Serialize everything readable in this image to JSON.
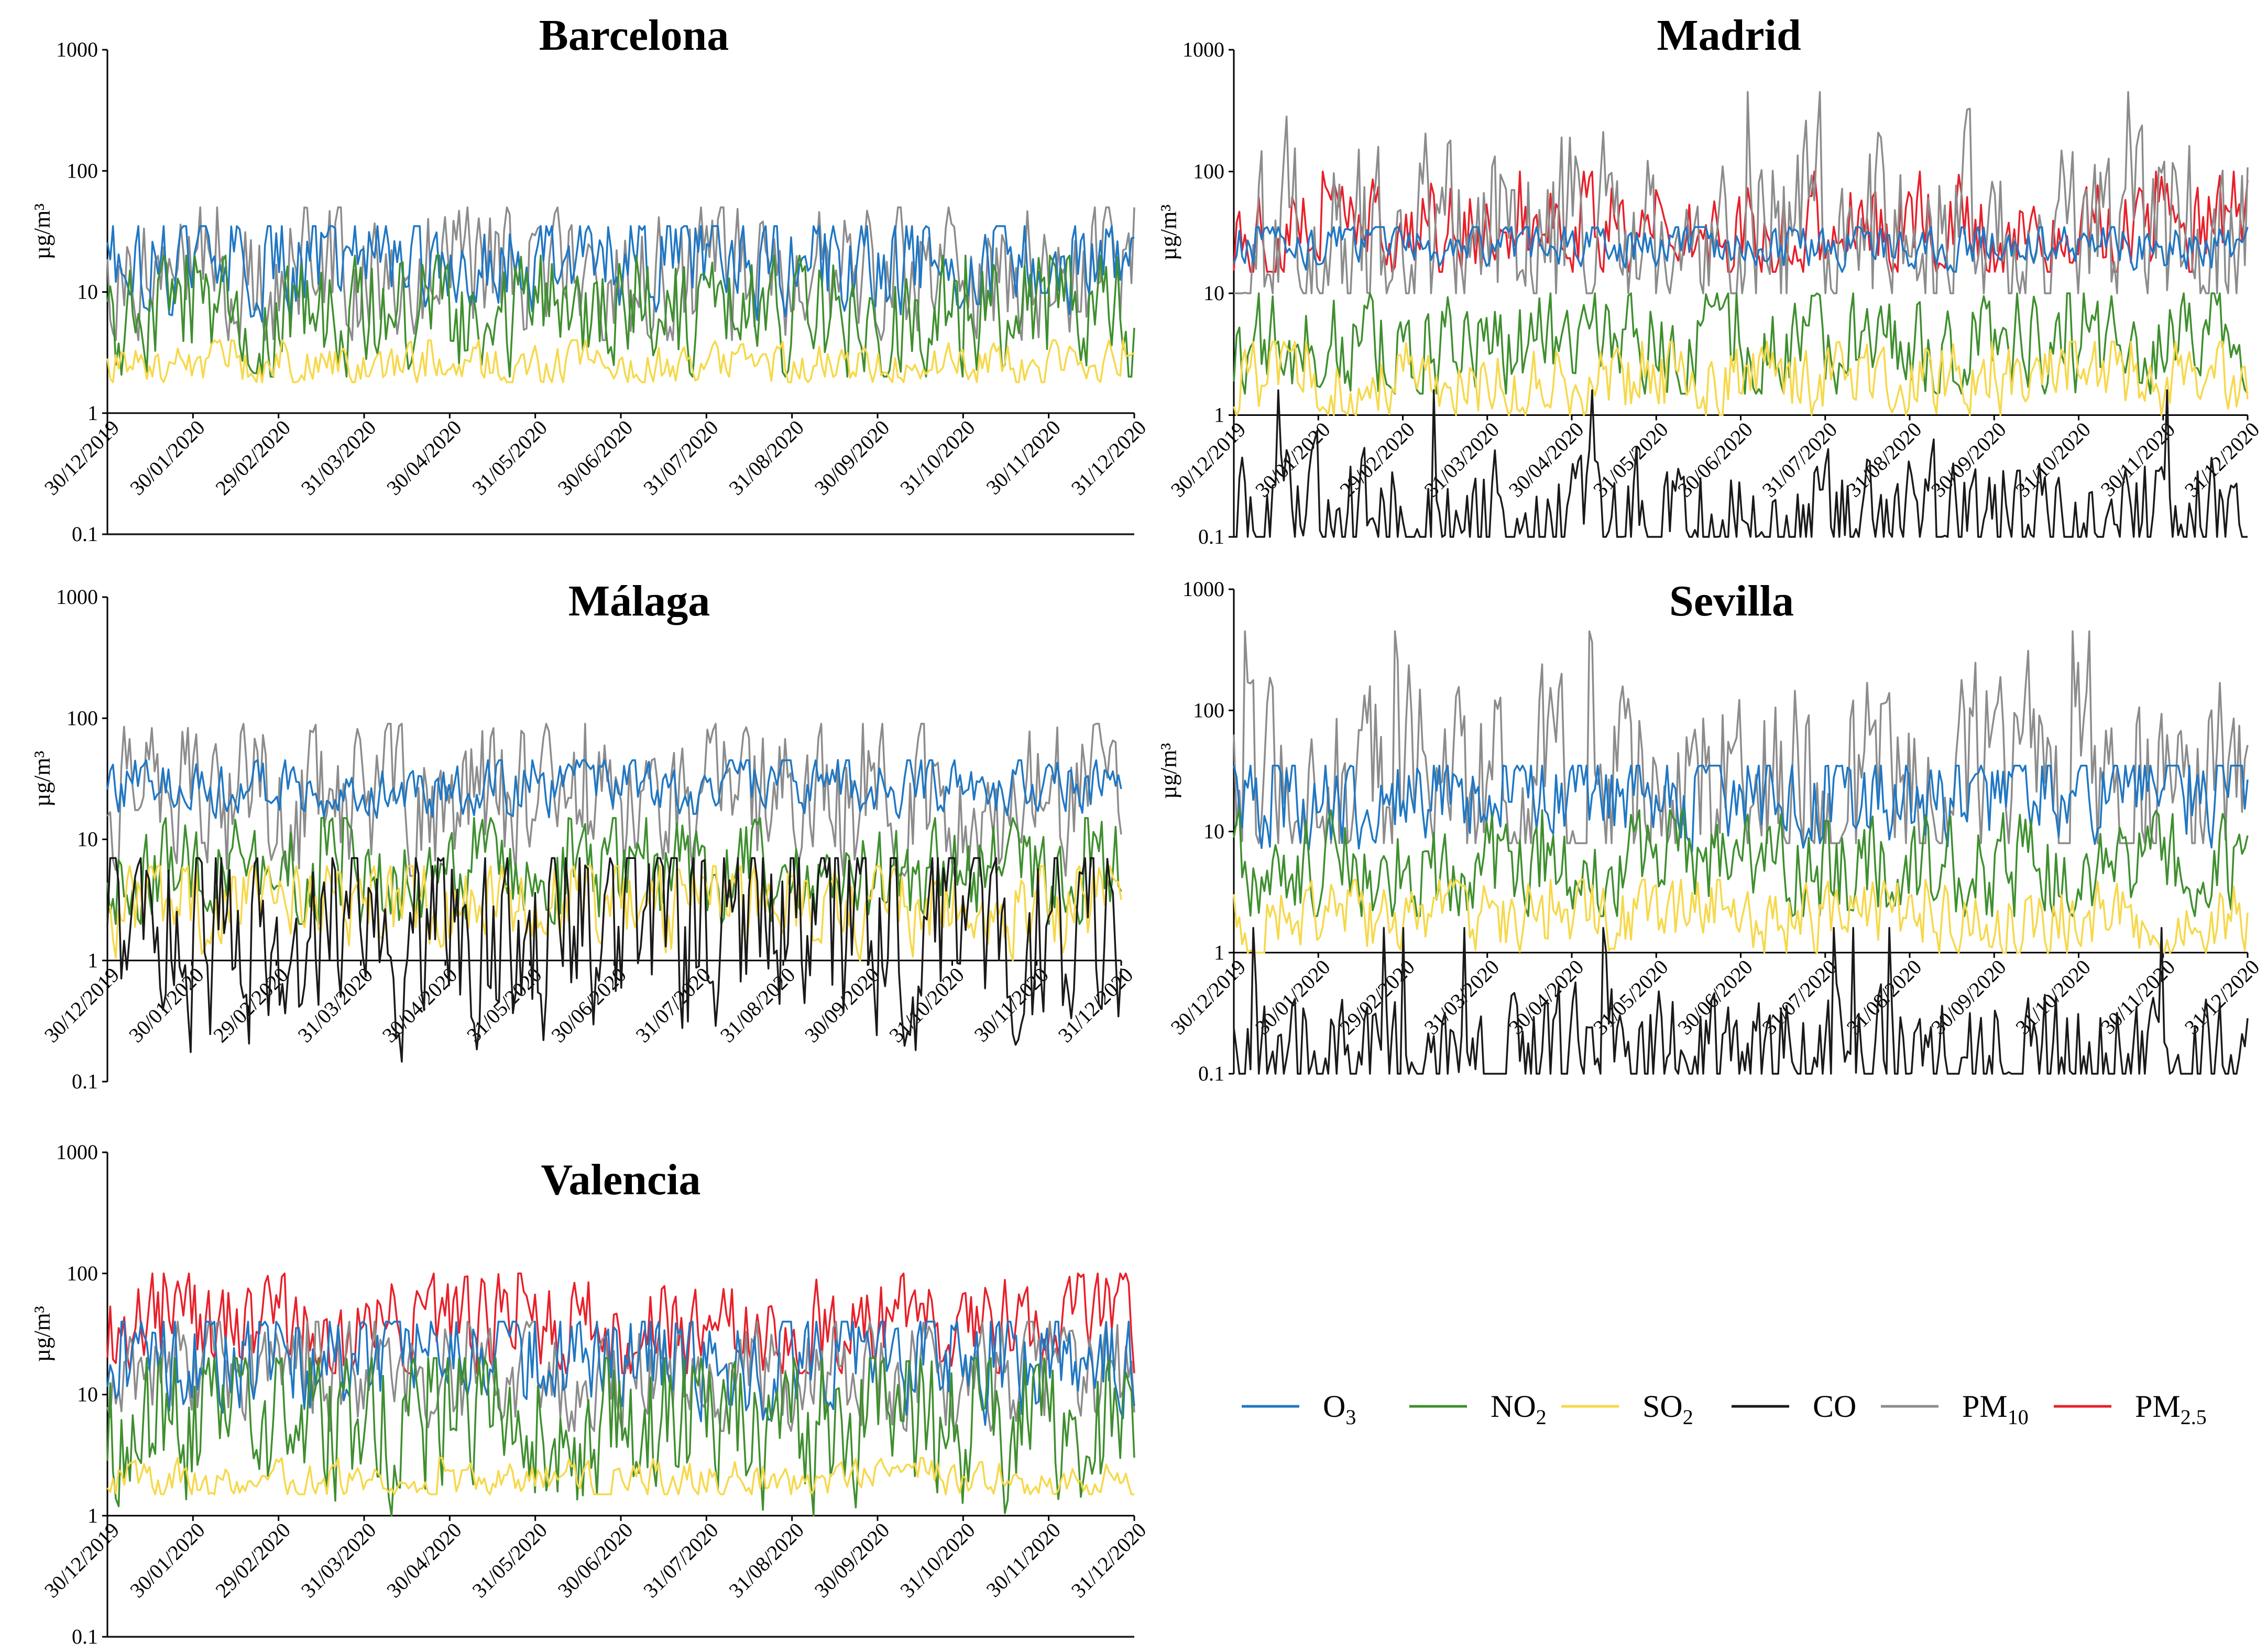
{
  "chart_data": [
    {
      "type": "line",
      "title": "Barcelona",
      "ylabel": "µg/m³",
      "yscale": "log",
      "ylim": [
        0.1,
        1000
      ],
      "yticks": [
        "1000",
        "100",
        "10",
        "1",
        "0.1"
      ],
      "x_ticks": [
        "30/12/2019",
        "30/01/2020",
        "29/02/2020",
        "31/03/2020",
        "30/04/2020",
        "31/05/2020",
        "30/06/2020",
        "31/07/2020",
        "31/08/2020",
        "30/09/2020",
        "31/10/2020",
        "30/11/2020",
        "31/12/2020"
      ],
      "series": [
        {
          "name": "O3",
          "color": "#1f77c4",
          "typical_range": [
            5,
            35
          ],
          "mean": 20
        },
        {
          "name": "NO2",
          "color": "#3f8f2f",
          "typical_range": [
            2,
            20
          ],
          "mean": 6
        },
        {
          "name": "SO2",
          "color": "#f6d84a",
          "typical_range": [
            1.8,
            4
          ],
          "mean": 2.5
        },
        {
          "name": "PM10",
          "color": "#8c8c8c",
          "typical_range": [
            4,
            50
          ],
          "mean": 14
        },
        {
          "name": "CO",
          "color": "#1a1a1a",
          "typical_range": [
            0.1,
            0.1
          ],
          "mean": 0.1
        }
      ]
    },
    {
      "type": "line",
      "title": "Madrid",
      "ylabel": "µg/m³",
      "yscale": "log",
      "ylim": [
        0.1,
        1000
      ],
      "yticks": [
        "1000",
        "100",
        "10",
        "1",
        "0.1"
      ],
      "x_ticks": [
        "30/12/2019",
        "30/01/2020",
        "29/02/2020",
        "31/03/2020",
        "30/04/2020",
        "31/05/2020",
        "30/06/2020",
        "31/07/2020",
        "31/08/2020",
        "30/09/2020",
        "31/10/2020",
        "30/11/2020",
        "31/12/2020"
      ],
      "series": [
        {
          "name": "O3",
          "color": "#1f77c4",
          "typical_range": [
            15,
            35
          ],
          "mean": 25
        },
        {
          "name": "NO2",
          "color": "#3f8f2f",
          "typical_range": [
            1.5,
            10
          ],
          "mean": 4
        },
        {
          "name": "SO2",
          "color": "#f6d84a",
          "typical_range": [
            1,
            4
          ],
          "mean": 2
        },
        {
          "name": "PM10",
          "color": "#8c8c8c",
          "typical_range": [
            10,
            450
          ],
          "mean": 25
        },
        {
          "name": "PM2.5",
          "color": "#e8202a",
          "typical_range": [
            15,
            100
          ],
          "mean": 35
        },
        {
          "name": "CO",
          "color": "#1a1a1a",
          "typical_range": [
            0.1,
            1.6
          ],
          "mean": 0.1
        }
      ]
    },
    {
      "type": "line",
      "title": "Málaga",
      "ylabel": "µg/m³",
      "yscale": "log",
      "ylim": [
        0.1,
        1000
      ],
      "yticks": [
        "1000",
        "100",
        "10",
        "1",
        "0.1"
      ],
      "x_ticks": [
        "30/12/2019",
        "30/01/2020",
        "29/02/2020",
        "31/03/2020",
        "30/04/2020",
        "31/05/2020",
        "30/06/2020",
        "31/07/2020",
        "31/08/2020",
        "30/09/2020",
        "31/10/2020",
        "30/11/2020",
        "31/12/2020"
      ],
      "series": [
        {
          "name": "O3",
          "color": "#1f77c4",
          "typical_range": [
            15,
            45
          ],
          "mean": 28
        },
        {
          "name": "NO2",
          "color": "#3f8f2f",
          "typical_range": [
            2,
            15
          ],
          "mean": 5
        },
        {
          "name": "SO2",
          "color": "#f6d84a",
          "typical_range": [
            1,
            6
          ],
          "mean": 3
        },
        {
          "name": "PM10",
          "color": "#8c8c8c",
          "typical_range": [
            5,
            90
          ],
          "mean": 20
        },
        {
          "name": "CO",
          "color": "#1a1a1a",
          "typical_range": [
            0.1,
            7
          ],
          "mean": 2.3
        }
      ]
    },
    {
      "type": "line",
      "title": "Sevilla",
      "ylabel": "µg/m³",
      "yscale": "log",
      "ylim": [
        0.1,
        1000
      ],
      "yticks": [
        "1000",
        "100",
        "10",
        "1",
        "0.1"
      ],
      "x_ticks": [
        "30/12/2019",
        "30/01/2020",
        "29/02/2020",
        "31/03/2020",
        "30/04/2020",
        "31/05/2020",
        "30/06/2020",
        "31/07/2020",
        "31/08/2020",
        "30/09/2020",
        "31/10/2020",
        "30/11/2020",
        "31/12/2020"
      ],
      "series": [
        {
          "name": "O3",
          "color": "#1f77c4",
          "typical_range": [
            5,
            35
          ],
          "mean": 22
        },
        {
          "name": "NO2",
          "color": "#3f8f2f",
          "typical_range": [
            2,
            15
          ],
          "mean": 5
        },
        {
          "name": "SO2",
          "color": "#f6d84a",
          "typical_range": [
            1,
            4
          ],
          "mean": 2
        },
        {
          "name": "PM10",
          "color": "#8c8c8c",
          "typical_range": [
            8,
            450
          ],
          "mean": 22
        },
        {
          "name": "CO",
          "color": "#1a1a1a",
          "typical_range": [
            0.1,
            1.6
          ],
          "mean": 0.1
        }
      ]
    },
    {
      "type": "line",
      "title": "Valencia",
      "ylabel": "µg/m³",
      "yscale": "log",
      "ylim": [
        0.1,
        1000
      ],
      "yticks": [
        "1000",
        "100",
        "10",
        "1",
        "0.1"
      ],
      "x_ticks": [
        "30/12/2019",
        "30/01/2020",
        "29/02/2020",
        "31/03/2020",
        "30/04/2020",
        "31/05/2020",
        "30/06/2020",
        "31/07/2020",
        "31/08/2020",
        "30/09/2020",
        "31/10/2020",
        "30/11/2020",
        "31/12/2020"
      ],
      "series": [
        {
          "name": "O3",
          "color": "#1f77c4",
          "typical_range": [
            5,
            40
          ],
          "mean": 20
        },
        {
          "name": "NO2",
          "color": "#3f8f2f",
          "typical_range": [
            1,
            20
          ],
          "mean": 6
        },
        {
          "name": "SO2",
          "color": "#f6d84a",
          "typical_range": [
            1.5,
            3
          ],
          "mean": 2
        },
        {
          "name": "PM10",
          "color": "#8c8c8c",
          "typical_range": [
            5,
            40
          ],
          "mean": 14
        },
        {
          "name": "PM2.5",
          "color": "#e8202a",
          "typical_range": [
            15,
            100
          ],
          "mean": 35
        },
        {
          "name": "CO",
          "color": "#1a1a1a",
          "typical_range": [
            0.1,
            0.1
          ],
          "mean": 0.1
        }
      ]
    }
  ],
  "legend": {
    "position": "right-center",
    "items": [
      {
        "name": "O3",
        "label": "O",
        "sub": "3",
        "color": "#1f77c4"
      },
      {
        "name": "NO2",
        "label": "NO",
        "sub": "2",
        "color": "#3f8f2f"
      },
      {
        "name": "SO2",
        "label": "SO",
        "sub": "2",
        "color": "#f6d84a"
      },
      {
        "name": "CO",
        "label": "CO",
        "sub": "",
        "color": "#1a1a1a"
      },
      {
        "name": "PM10",
        "label": "PM",
        "sub": "10",
        "color": "#8c8c8c"
      },
      {
        "name": "PM2.5",
        "label": "PM",
        "sub": "2.5",
        "color": "#e8202a"
      }
    ]
  }
}
